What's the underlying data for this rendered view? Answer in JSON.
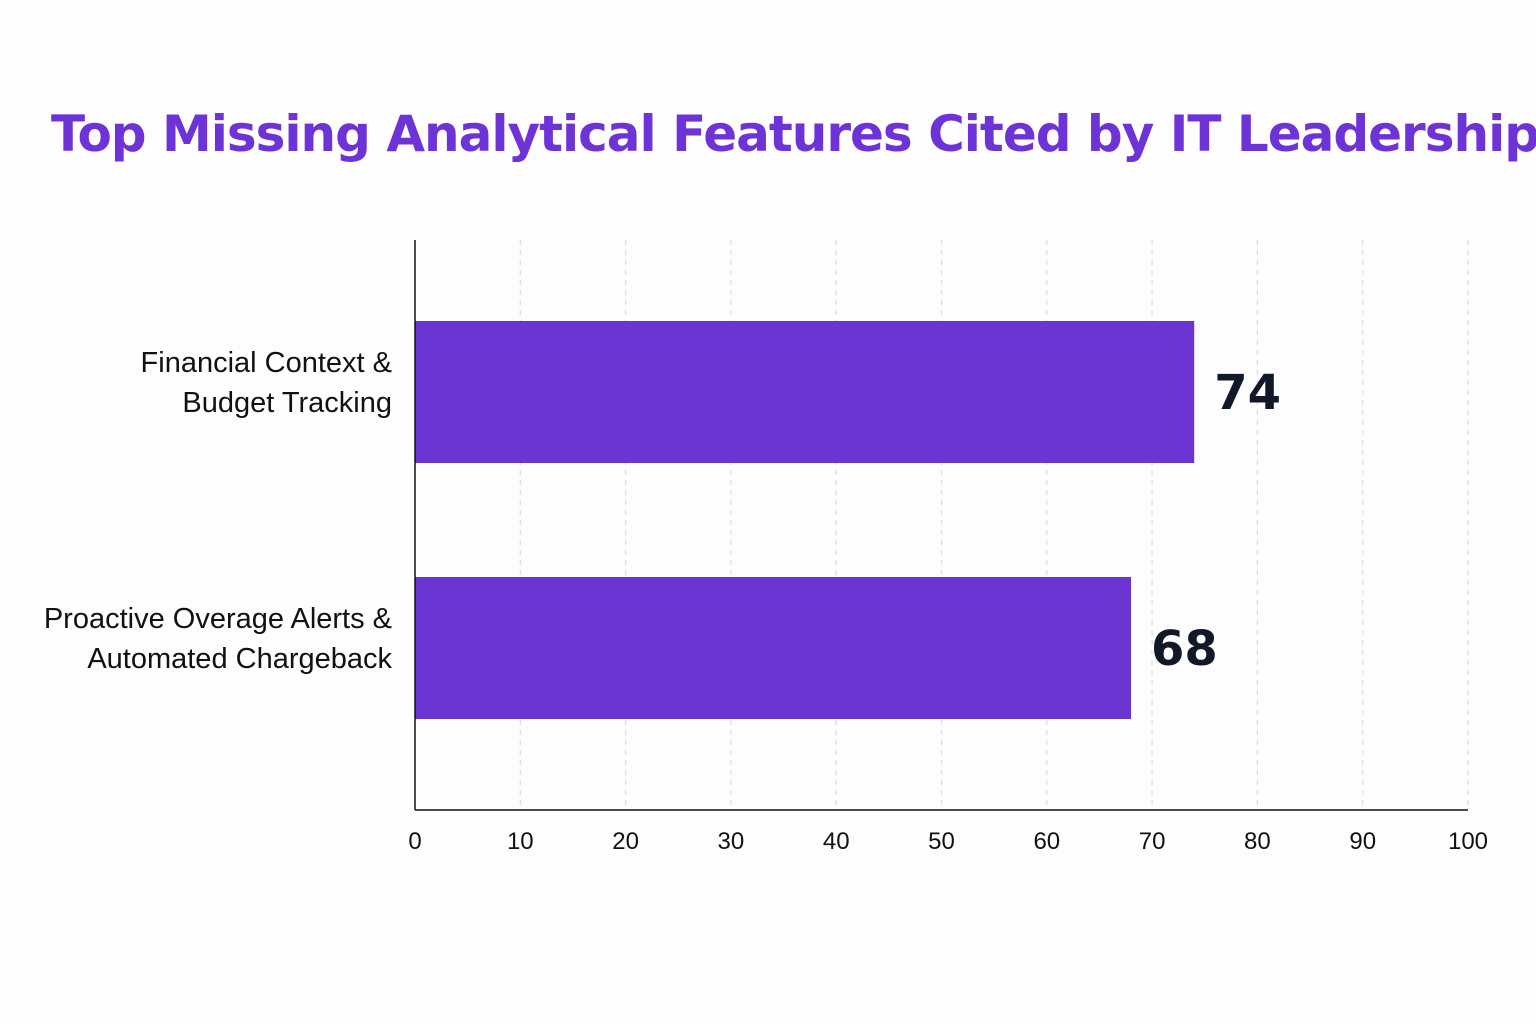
{
  "chart_data": {
    "type": "bar",
    "orientation": "horizontal",
    "title": "Top Missing Analytical Features Cited by IT Leadership",
    "categories": [
      [
        "Financial Context &",
        "Budget Tracking"
      ],
      [
        "Proactive Overage Alerts &",
        "Automated Chargeback"
      ]
    ],
    "values": [
      74,
      68
    ],
    "data_labels": [
      "74",
      "68"
    ],
    "xlim": [
      0,
      100
    ],
    "x_ticks": [
      "0",
      "10",
      "20",
      "30",
      "40",
      "50",
      "60",
      "70",
      "80",
      "90",
      "100"
    ],
    "xlabel": "",
    "ylabel": "",
    "grid": "vertical dashed",
    "legend": "none",
    "colors": {
      "bar": "#6a35d1",
      "title": "#6d33d6",
      "text": "#111111",
      "grid": "#dcdcdc",
      "axis": "#111111"
    }
  }
}
